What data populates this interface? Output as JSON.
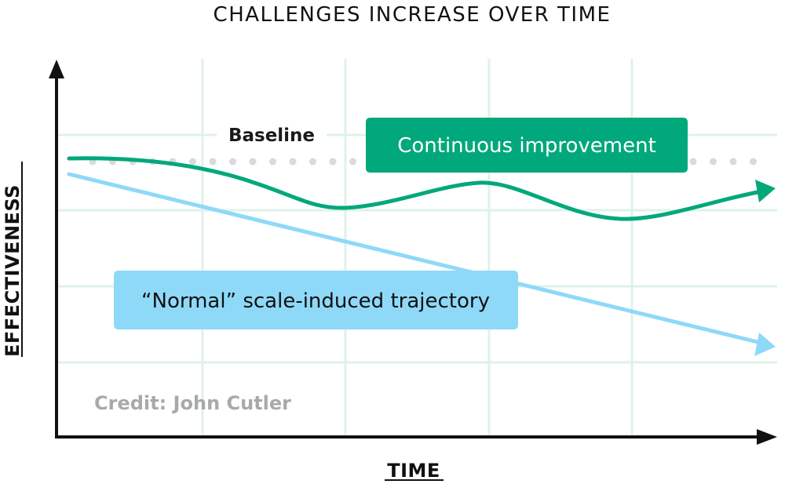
{
  "title": "CHALLENGES INCREASE OVER TIME",
  "y_axis_label": "EFFECTIVENESS",
  "x_axis_label": "TIME",
  "baseline_label": "Baseline",
  "continuous_label": "Continuous improvement",
  "normal_label": "“Normal” scale-induced trajectory",
  "credit": "Credit: John Cutler",
  "colors": {
    "green": "#00a87b",
    "blue": "#8fd9f8",
    "grid": "#dff2ea",
    "baseline_dots": "#d9dadd",
    "axis": "#111111",
    "credit": "#a8a9ab"
  }
}
